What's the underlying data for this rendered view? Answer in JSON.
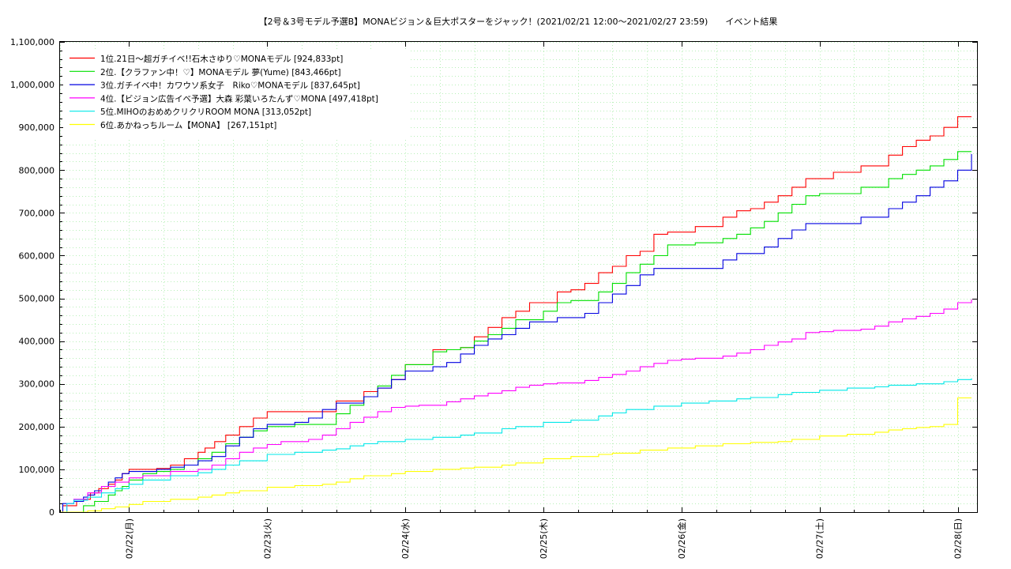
{
  "chart_data": {
    "type": "line",
    "title": "【2号＆3号モデル予選B】MONAビジョン＆巨大ポスターをジャック！(2021/02/21 12:00〜2021/02/27 23:59)　　イベント結果",
    "xlabel": "",
    "ylabel": "",
    "ylim": [
      0,
      1100000
    ],
    "xlim": [
      0,
      6.64
    ],
    "x_unit": "days since 2021/02/21 12:00",
    "y_ticks": [
      "0",
      "100,000",
      "200,000",
      "300,000",
      "400,000",
      "500,000",
      "600,000",
      "700,000",
      "800,000",
      "900,000",
      "1,000,000",
      "1,100,000"
    ],
    "x_ticks": [
      {
        "label": "02/22(月)",
        "x": 0.5
      },
      {
        "label": "02/23(火)",
        "x": 1.5
      },
      {
        "label": "02/24(水)",
        "x": 2.5
      },
      {
        "label": "02/25(木)",
        "x": 3.5
      },
      {
        "label": "02/26(金)",
        "x": 4.5
      },
      {
        "label": "02/27(土)",
        "x": 5.5
      },
      {
        "label": "02/28(日)",
        "x": 6.5
      }
    ],
    "grid": true,
    "legend_position": "top-left",
    "series": [
      {
        "name": "1位.21日〜超ガチイベ!!石木さゆり♡MONAモデル [924,833pt]",
        "color": "#ff0000",
        "x": [
          0.0,
          0.02,
          0.12,
          0.17,
          0.22,
          0.28,
          0.35,
          0.4,
          0.45,
          0.5,
          0.6,
          0.7,
          0.8,
          0.9,
          1.0,
          1.05,
          1.12,
          1.2,
          1.3,
          1.4,
          1.5,
          1.7,
          1.9,
          2.0,
          2.1,
          2.2,
          2.3,
          2.4,
          2.5,
          2.7,
          2.8,
          2.9,
          3.0,
          3.1,
          3.2,
          3.3,
          3.4,
          3.6,
          3.7,
          3.8,
          3.9,
          4.0,
          4.1,
          4.2,
          4.3,
          4.4,
          4.6,
          4.8,
          4.9,
          5.0,
          5.1,
          5.2,
          5.3,
          5.4,
          5.5,
          5.6,
          5.8,
          6.0,
          6.1,
          6.2,
          6.3,
          6.4,
          6.5,
          6.6
        ],
        "y": [
          0,
          15000,
          25000,
          30000,
          45000,
          55000,
          65000,
          75000,
          90000,
          100000,
          100000,
          102000,
          110000,
          125000,
          140000,
          150000,
          165000,
          180000,
          200000,
          220000,
          235000,
          235000,
          235000,
          260000,
          260000,
          282000,
          290000,
          310000,
          345000,
          380000,
          380000,
          385000,
          410000,
          432000,
          455000,
          470000,
          490000,
          515000,
          520000,
          535000,
          560000,
          575000,
          600000,
          610000,
          650000,
          655000,
          668000,
          690000,
          705000,
          710000,
          725000,
          740000,
          760000,
          780000,
          780000,
          795000,
          810000,
          835000,
          855000,
          870000,
          880000,
          900000,
          925000,
          925000
        ]
      },
      {
        "name": "2位.【クラファン中！♡】MONAモデル 夢(Yume) [843,466pt]",
        "color": "#00e000",
        "x": [
          0.0,
          0.12,
          0.17,
          0.25,
          0.35,
          0.4,
          0.45,
          0.5,
          0.6,
          0.7,
          0.8,
          0.9,
          1.0,
          1.1,
          1.2,
          1.3,
          1.4,
          1.5,
          1.6,
          1.7,
          1.9,
          2.0,
          2.1,
          2.2,
          2.3,
          2.4,
          2.5,
          2.7,
          2.8,
          2.9,
          3.0,
          3.1,
          3.2,
          3.3,
          3.5,
          3.6,
          3.7,
          3.8,
          3.9,
          4.0,
          4.1,
          4.2,
          4.3,
          4.4,
          4.6,
          4.8,
          4.9,
          5.0,
          5.1,
          5.2,
          5.3,
          5.4,
          5.5,
          5.6,
          5.8,
          6.0,
          6.1,
          6.2,
          6.3,
          6.4,
          6.5,
          6.6
        ],
        "y": [
          0,
          0,
          15000,
          25000,
          40000,
          50000,
          60000,
          75000,
          90000,
          95000,
          100000,
          110000,
          125000,
          140000,
          160000,
          175000,
          190000,
          200000,
          200000,
          205000,
          205000,
          230000,
          250000,
          270000,
          295000,
          320000,
          345000,
          375000,
          380000,
          385000,
          400000,
          415000,
          430000,
          450000,
          470000,
          490000,
          495000,
          495000,
          515000,
          535000,
          560000,
          580000,
          600000,
          625000,
          630000,
          640000,
          650000,
          665000,
          680000,
          700000,
          720000,
          740000,
          745000,
          745000,
          760000,
          780000,
          790000,
          800000,
          810000,
          825000,
          843466,
          843466
        ]
      },
      {
        "name": "3位.ガチイベ中！カワウソ系女子　Riko♡MONAモデル [837,645pt]",
        "color": "#0000e0",
        "x": [
          0.0,
          0.02,
          0.1,
          0.17,
          0.2,
          0.25,
          0.3,
          0.35,
          0.4,
          0.45,
          0.5,
          0.6,
          0.7,
          0.8,
          0.9,
          1.0,
          1.1,
          1.2,
          1.3,
          1.4,
          1.5,
          1.6,
          1.7,
          1.8,
          1.9,
          2.0,
          2.1,
          2.2,
          2.3,
          2.4,
          2.5,
          2.6,
          2.7,
          2.8,
          2.9,
          3.0,
          3.1,
          3.2,
          3.3,
          3.4,
          3.6,
          3.8,
          3.9,
          4.0,
          4.1,
          4.2,
          4.3,
          4.4,
          4.6,
          4.8,
          4.9,
          5.0,
          5.1,
          5.2,
          5.3,
          5.4,
          5.6,
          5.8,
          6.0,
          6.1,
          6.2,
          6.3,
          6.4,
          6.5,
          6.6
        ],
        "y": [
          0,
          20000,
          25000,
          35000,
          40000,
          50000,
          60000,
          70000,
          80000,
          90000,
          95000,
          95000,
          100000,
          105000,
          110000,
          120000,
          130000,
          155000,
          175000,
          195000,
          205000,
          205000,
          210000,
          220000,
          240000,
          255000,
          255000,
          270000,
          290000,
          310000,
          330000,
          330000,
          340000,
          350000,
          370000,
          390000,
          405000,
          415000,
          430000,
          445000,
          455000,
          465000,
          490000,
          510000,
          530000,
          555000,
          570000,
          570000,
          570000,
          590000,
          605000,
          605000,
          620000,
          640000,
          660000,
          675000,
          675000,
          690000,
          710000,
          725000,
          740000,
          760000,
          775000,
          800000,
          837645
        ]
      },
      {
        "name": "4位.【ビジョン広告イベ予選】大森 彩葉いろたんず♡MONA [497,418pt]",
        "color": "#ff00ff",
        "x": [
          0.0,
          0.05,
          0.1,
          0.2,
          0.3,
          0.4,
          0.5,
          0.6,
          0.8,
          1.0,
          1.1,
          1.2,
          1.3,
          1.4,
          1.5,
          1.6,
          1.8,
          1.9,
          2.0,
          2.1,
          2.2,
          2.3,
          2.4,
          2.5,
          2.6,
          2.8,
          2.9,
          3.0,
          3.1,
          3.2,
          3.3,
          3.4,
          3.5,
          3.6,
          3.8,
          3.9,
          4.0,
          4.1,
          4.2,
          4.3,
          4.4,
          4.5,
          4.6,
          4.8,
          4.9,
          5.0,
          5.1,
          5.2,
          5.3,
          5.4,
          5.5,
          5.6,
          5.8,
          5.9,
          6.0,
          6.1,
          6.2,
          6.3,
          6.4,
          6.5,
          6.6
        ],
        "y": [
          0,
          20000,
          30000,
          45000,
          60000,
          70000,
          80000,
          85000,
          95000,
          100000,
          110000,
          125000,
          140000,
          150000,
          158000,
          165000,
          170000,
          180000,
          195000,
          210000,
          222000,
          235000,
          245000,
          248000,
          250000,
          258000,
          265000,
          272000,
          278000,
          284000,
          292000,
          297000,
          300000,
          302000,
          308000,
          315000,
          322000,
          330000,
          340000,
          348000,
          355000,
          358000,
          360000,
          365000,
          372000,
          380000,
          390000,
          398000,
          405000,
          420000,
          422000,
          425000,
          428000,
          435000,
          445000,
          452000,
          458000,
          465000,
          475000,
          490000,
          497418
        ]
      },
      {
        "name": "5位.MIHOのおめめクリクリROOM MONA [313,052pt]",
        "color": "#00e8e8",
        "x": [
          0.0,
          0.05,
          0.1,
          0.2,
          0.3,
          0.4,
          0.5,
          0.6,
          0.8,
          1.0,
          1.1,
          1.2,
          1.3,
          1.5,
          1.7,
          1.9,
          2.0,
          2.1,
          2.2,
          2.3,
          2.5,
          2.7,
          2.9,
          3.0,
          3.2,
          3.3,
          3.5,
          3.7,
          3.9,
          4.0,
          4.1,
          4.3,
          4.5,
          4.7,
          4.9,
          5.0,
          5.2,
          5.3,
          5.5,
          5.7,
          5.9,
          6.0,
          6.2,
          6.4,
          6.5,
          6.6
        ],
        "y": [
          0,
          20000,
          28000,
          35000,
          45000,
          55000,
          65000,
          75000,
          85000,
          92000,
          100000,
          110000,
          120000,
          135000,
          140000,
          145000,
          148000,
          155000,
          160000,
          165000,
          170000,
          175000,
          180000,
          185000,
          195000,
          200000,
          210000,
          215000,
          225000,
          232000,
          240000,
          248000,
          255000,
          260000,
          265000,
          268000,
          275000,
          280000,
          285000,
          290000,
          293000,
          297000,
          300000,
          305000,
          310000,
          313052
        ]
      },
      {
        "name": "6位.あかねっちルーム【MONA】 [267,151pt]",
        "color": "#ffff00",
        "x": [
          0.0,
          0.1,
          0.2,
          0.3,
          0.4,
          0.5,
          0.6,
          0.8,
          1.0,
          1.1,
          1.2,
          1.3,
          1.5,
          1.7,
          1.9,
          2.0,
          2.1,
          2.2,
          2.4,
          2.5,
          2.7,
          2.9,
          3.0,
          3.2,
          3.3,
          3.5,
          3.7,
          3.9,
          4.0,
          4.2,
          4.4,
          4.6,
          4.8,
          5.0,
          5.2,
          5.3,
          5.5,
          5.7,
          5.9,
          6.0,
          6.1,
          6.2,
          6.3,
          6.4,
          6.5,
          6.6
        ],
        "y": [
          0,
          0,
          3000,
          8000,
          12000,
          18000,
          25000,
          30000,
          35000,
          40000,
          45000,
          50000,
          58000,
          62000,
          65000,
          70000,
          78000,
          85000,
          90000,
          95000,
          100000,
          103000,
          105000,
          110000,
          115000,
          125000,
          130000,
          135000,
          138000,
          145000,
          150000,
          155000,
          160000,
          163000,
          165000,
          170000,
          178000,
          182000,
          187000,
          192000,
          195000,
          198000,
          200000,
          205000,
          267151,
          267151
        ]
      }
    ]
  }
}
